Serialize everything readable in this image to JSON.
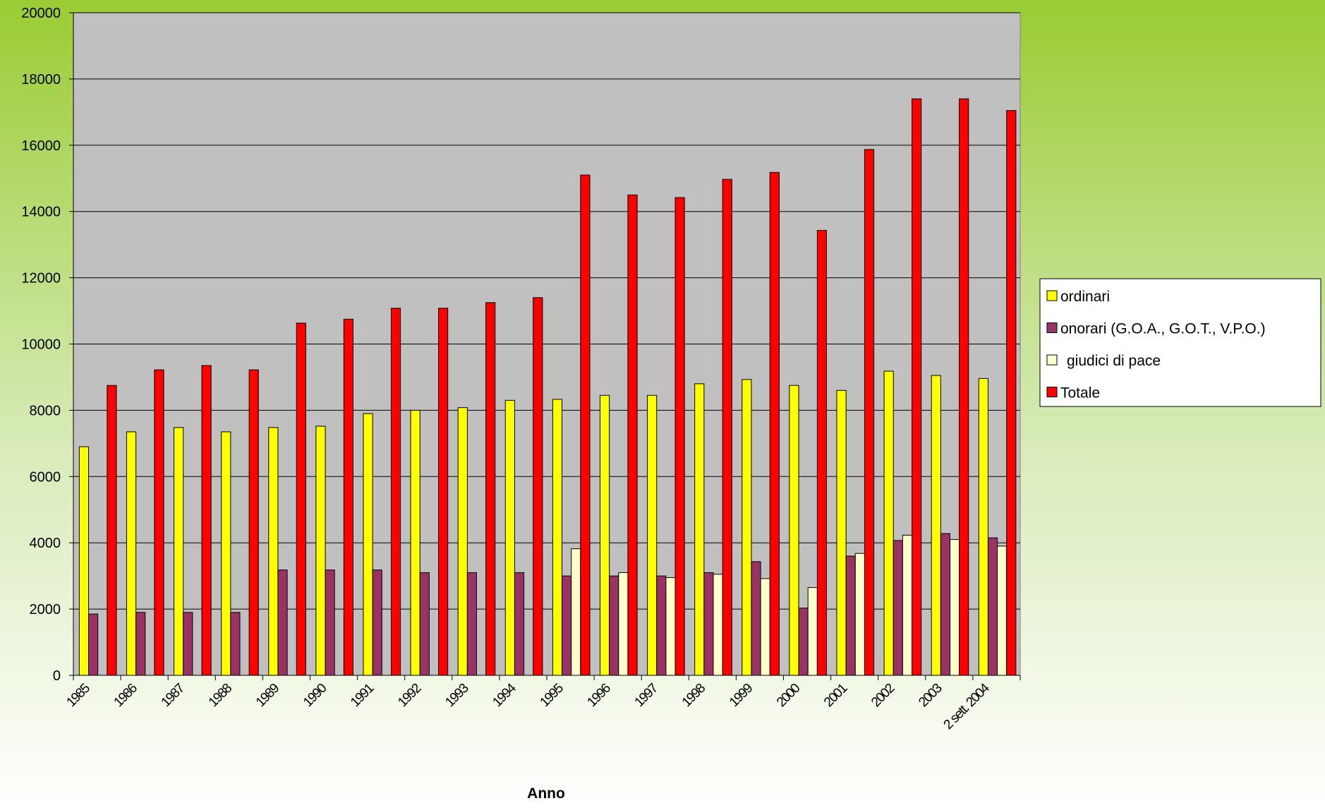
{
  "chart_data": {
    "type": "bar",
    "x_label": "Anno",
    "categories": [
      "1985",
      "1986",
      "1987",
      "1988",
      "1989",
      "1990",
      "1991",
      "1992",
      "1993",
      "1994",
      "1995",
      "1996",
      "1997",
      "1998",
      "1999",
      "2000",
      "2001",
      "2002",
      "2003",
      "2 sett. 2004"
    ],
    "series": [
      {
        "name": "ordinari",
        "color": "#ffff00",
        "values": [
          6900,
          7350,
          7480,
          7350,
          7480,
          7520,
          7900,
          8000,
          8080,
          8300,
          8330,
          8450,
          8450,
          8800,
          8930,
          8750,
          8600,
          9180,
          9050,
          8960
        ]
      },
      {
        "name": "onorari (G.O.A., G.O.T., V.P.O.)",
        "color": "#993366",
        "values": [
          1850,
          1900,
          1900,
          1900,
          3180,
          3180,
          3180,
          3100,
          3100,
          3100,
          3000,
          3000,
          3000,
          3100,
          3430,
          2030,
          3600,
          4070,
          4280,
          4150
        ]
      },
      {
        "name": "giudici di pace",
        "color": "#ffffcc",
        "values": [
          null,
          null,
          null,
          null,
          null,
          null,
          null,
          null,
          null,
          null,
          3820,
          3100,
          2950,
          3050,
          2920,
          2650,
          3680,
          4230,
          4100,
          3900
        ]
      },
      {
        "name": "Totale",
        "color": "#ff0000",
        "values": [
          8750,
          9220,
          9350,
          9220,
          10630,
          10750,
          11080,
          11080,
          11250,
          11400,
          15100,
          14500,
          14420,
          14970,
          15180,
          13430,
          15870,
          17400,
          17400,
          17050
        ]
      }
    ],
    "ylim": [
      0,
      20000
    ],
    "yticks": [
      0,
      2000,
      4000,
      6000,
      8000,
      10000,
      12000,
      14000,
      16000,
      18000,
      20000
    ],
    "grid": true,
    "legend": "right"
  }
}
